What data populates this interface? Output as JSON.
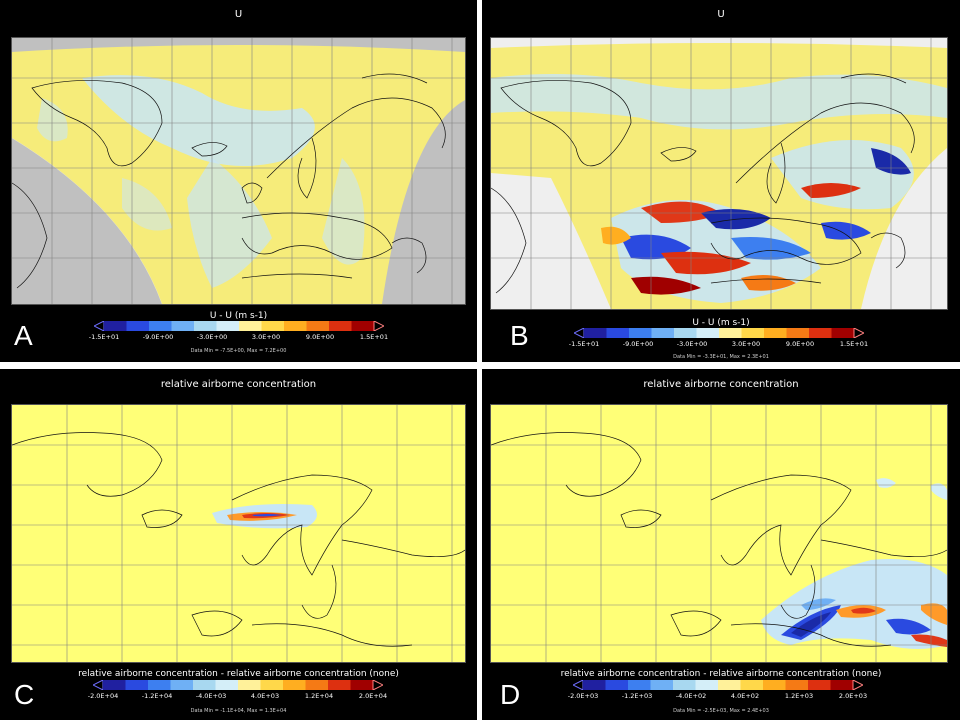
{
  "panels": {
    "A": {
      "label": "A",
      "title": "U",
      "cbar_title": "U - U  (m s-1)",
      "ticks": [
        "-1.5E+01",
        "-9.0E+00",
        "-3.0E+00",
        "3.0E+00",
        "9.0E+00",
        "1.5E+01"
      ],
      "data_minmax": "Data Min = -7.5E+00, Max = 7.2E+00"
    },
    "B": {
      "label": "B",
      "title": "U",
      "cbar_title": "U - U  (m s-1)",
      "ticks": [
        "-1.5E+01",
        "-9.0E+00",
        "-3.0E+00",
        "3.0E+00",
        "9.0E+00",
        "1.5E+01"
      ],
      "data_minmax": "Data Min = -3.3E+01, Max = 2.3E+01"
    },
    "C": {
      "label": "C",
      "title": "relative airborne concentration",
      "cbar_title": "relative airborne concentration - relative airborne concentration  (none)",
      "ticks": [
        "-2.0E+04",
        "-1.2E+04",
        "-4.0E+03",
        "4.0E+03",
        "1.2E+04",
        "2.0E+04"
      ],
      "data_minmax": "Data Min = -1.1E+04, Max = 1.3E+04"
    },
    "D": {
      "label": "D",
      "title": "relative airborne concentration",
      "cbar_title": "relative airborne concentration - relative airborne concentration  (none)",
      "ticks": [
        "-2.0E+03",
        "-1.2E+03",
        "-4.0E+02",
        "4.0E+02",
        "1.2E+03",
        "2.0E+03"
      ],
      "data_minmax": "Data Min = -2.5E+03, Max = 2.4E+03"
    }
  },
  "colors": {
    "background": "#000000",
    "outside_domain": "#c0c0c0",
    "near_zero": "#ffff77",
    "colorbar": [
      "#2020a0",
      "#2a4ae0",
      "#3d7ff0",
      "#6fb0f5",
      "#a8d8f0",
      "#d4eef8",
      "#fff19a",
      "#ffd84a",
      "#ffae20",
      "#f57a15",
      "#dd3010",
      "#a00000"
    ]
  }
}
